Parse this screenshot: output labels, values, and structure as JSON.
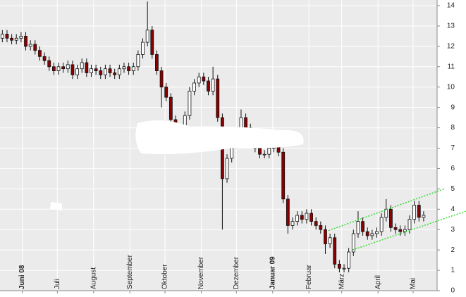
{
  "chart_data": {
    "type": "candlestick",
    "x": [
      2,
      6,
      10,
      14,
      18,
      22,
      26,
      30,
      34,
      38,
      42,
      46,
      50,
      54,
      58,
      62,
      66,
      70,
      74,
      78,
      82,
      86,
      90,
      94,
      98,
      102,
      106,
      110,
      114,
      118,
      122,
      126,
      130,
      134,
      138,
      142,
      146,
      150,
      154,
      158,
      162,
      166,
      170,
      174,
      178,
      182,
      186,
      190,
      194,
      198,
      202,
      206,
      210,
      214,
      218,
      222,
      226,
      230,
      234,
      238,
      242,
      246,
      250,
      254,
      258,
      262,
      266,
      270,
      274,
      278,
      282,
      286,
      290,
      294,
      298,
      302,
      306,
      310,
      314,
      318,
      322,
      326,
      330,
      334,
      338,
      342,
      346,
      350,
      354,
      358,
      362
    ],
    "open": [
      12.4,
      12.6,
      12.4,
      12.3,
      12.4,
      12.5,
      12.0,
      12.1,
      11.8,
      11.5,
      11.3,
      11.0,
      10.8,
      11.0,
      10.9,
      11.1,
      10.6,
      10.9,
      11.2,
      10.7,
      10.9,
      10.8,
      10.6,
      10.9,
      10.7,
      10.6,
      10.9,
      11.0,
      10.8,
      11.0,
      11.6,
      12.2,
      12.8,
      11.6,
      10.8,
      10.0,
      9.5,
      8.4,
      8.0,
      7.8,
      8.6,
      9.8,
      10.2,
      10.5,
      10.3,
      9.8,
      10.4,
      8.5,
      5.5,
      6.5,
      7.2,
      7.8,
      8.5,
      8.0,
      7.6,
      7.0,
      6.7,
      6.7,
      7.0,
      7.3,
      6.8,
      4.5,
      3.2,
      3.4,
      3.7,
      3.5,
      3.8,
      3.4,
      3.2,
      3.0,
      2.3,
      2.6,
      1.3,
      1.1,
      1.1,
      1.9,
      2.8,
      3.4,
      2.9,
      2.7,
      2.8,
      2.9,
      3.6,
      4.0,
      3.1,
      3.0,
      2.9,
      3.0,
      3.5,
      4.2,
      3.6
    ],
    "high": [
      12.8,
      12.8,
      12.6,
      12.6,
      12.7,
      12.7,
      12.3,
      12.3,
      12.0,
      11.7,
      11.5,
      11.2,
      11.2,
      11.2,
      11.3,
      11.3,
      11.1,
      11.4,
      11.4,
      11.1,
      11.1,
      11.0,
      11.1,
      11.1,
      10.9,
      11.1,
      11.2,
      11.2,
      11.2,
      11.8,
      12.4,
      14.2,
      13.0,
      11.8,
      11.0,
      10.2,
      9.7,
      8.6,
      8.2,
      8.8,
      10.0,
      10.4,
      10.7,
      10.7,
      10.5,
      11.0,
      10.6,
      8.7,
      6.7,
      7.4,
      8.0,
      8.9,
      8.7,
      8.2,
      7.8,
      7.2,
      6.9,
      7.2,
      7.5,
      7.5,
      7.0,
      4.7,
      3.6,
      3.9,
      3.9,
      4.0,
      4.0,
      3.6,
      3.4,
      3.2,
      2.8,
      2.8,
      1.5,
      1.3,
      2.1,
      3.0,
      3.9,
      3.6,
      3.1,
      3.0,
      3.1,
      3.8,
      4.5,
      4.2,
      3.3,
      3.2,
      3.2,
      3.7,
      4.4,
      4.4,
      3.9
    ],
    "low": [
      12.2,
      12.2,
      12.1,
      12.1,
      12.2,
      11.8,
      11.8,
      11.6,
      11.3,
      11.1,
      10.8,
      10.6,
      10.6,
      10.7,
      10.7,
      10.4,
      10.4,
      10.7,
      10.5,
      10.5,
      10.6,
      10.4,
      10.4,
      10.5,
      10.4,
      10.4,
      10.7,
      10.6,
      10.6,
      10.8,
      11.4,
      12.0,
      11.4,
      10.6,
      9.0,
      9.3,
      8.2,
      7.4,
      7.6,
      7.6,
      8.4,
      9.6,
      10.0,
      10.1,
      9.6,
      9.6,
      8.3,
      3.0,
      5.3,
      6.3,
      7.0,
      7.6,
      7.8,
      7.4,
      6.8,
      6.5,
      6.5,
      6.5,
      6.8,
      6.6,
      4.3,
      2.8,
      3.0,
      3.2,
      3.3,
      3.3,
      3.2,
      3.0,
      2.8,
      1.8,
      2.1,
      1.1,
      0.9,
      0.9,
      0.9,
      1.7,
      2.6,
      2.7,
      2.5,
      2.5,
      2.6,
      2.7,
      3.4,
      2.9,
      2.8,
      2.7,
      2.7,
      2.8,
      3.3,
      3.4,
      3.4
    ],
    "close": [
      12.6,
      12.4,
      12.3,
      12.4,
      12.5,
      12.0,
      12.1,
      11.8,
      11.5,
      11.3,
      11.0,
      10.8,
      11.0,
      10.9,
      11.1,
      10.6,
      10.9,
      11.2,
      10.7,
      10.9,
      10.8,
      10.6,
      10.9,
      10.7,
      10.6,
      10.9,
      11.0,
      10.8,
      11.0,
      11.6,
      12.2,
      12.8,
      11.6,
      10.8,
      10.0,
      9.5,
      8.4,
      8.0,
      7.8,
      8.6,
      9.8,
      10.2,
      10.5,
      10.3,
      9.8,
      10.4,
      8.5,
      5.5,
      6.5,
      7.2,
      7.8,
      8.5,
      8.0,
      7.6,
      7.0,
      6.7,
      6.7,
      7.0,
      7.3,
      6.8,
      4.5,
      3.2,
      3.4,
      3.7,
      3.5,
      3.8,
      3.4,
      3.2,
      3.0,
      2.3,
      2.6,
      1.3,
      1.1,
      1.1,
      1.9,
      2.8,
      3.4,
      2.9,
      2.7,
      2.8,
      2.9,
      3.6,
      4.0,
      3.1,
      3.0,
      2.9,
      3.0,
      3.5,
      4.2,
      3.6,
      3.7
    ],
    "up_color": "#ffffff",
    "down_color": "#8b0000",
    "xlim": [
      0,
      373.5
    ],
    "ylim": [
      0,
      14
    ],
    "xticks": [
      {
        "value": 19,
        "label": "Juni 08"
      },
      {
        "value": 49,
        "label": "Juli"
      },
      {
        "value": 80,
        "label": "August"
      },
      {
        "value": 111,
        "label": "September"
      },
      {
        "value": 141,
        "label": "Oktober"
      },
      {
        "value": 172,
        "label": "November"
      },
      {
        "value": 202,
        "label": "Dezember"
      },
      {
        "value": 233,
        "label": "Januar 09"
      },
      {
        "value": 264,
        "label": "Februar"
      },
      {
        "value": 292,
        "label": "März"
      },
      {
        "value": 323,
        "label": "April"
      },
      {
        "value": 353,
        "label": "Mai"
      }
    ],
    "yticks": [
      0,
      1,
      2,
      3,
      4,
      5,
      6,
      7,
      8,
      9,
      10,
      11,
      12,
      13,
      14
    ],
    "grid": true,
    "trendlines": [
      {
        "x": [
          280.7,
          379.5
        ],
        "y": [
          2.95,
          5.0
        ],
        "color": "#33dd33"
      },
      {
        "x": [
          301.2,
          398
        ],
        "y": [
          2.0,
          3.9
        ],
        "color": "#33dd33"
      }
    ]
  }
}
